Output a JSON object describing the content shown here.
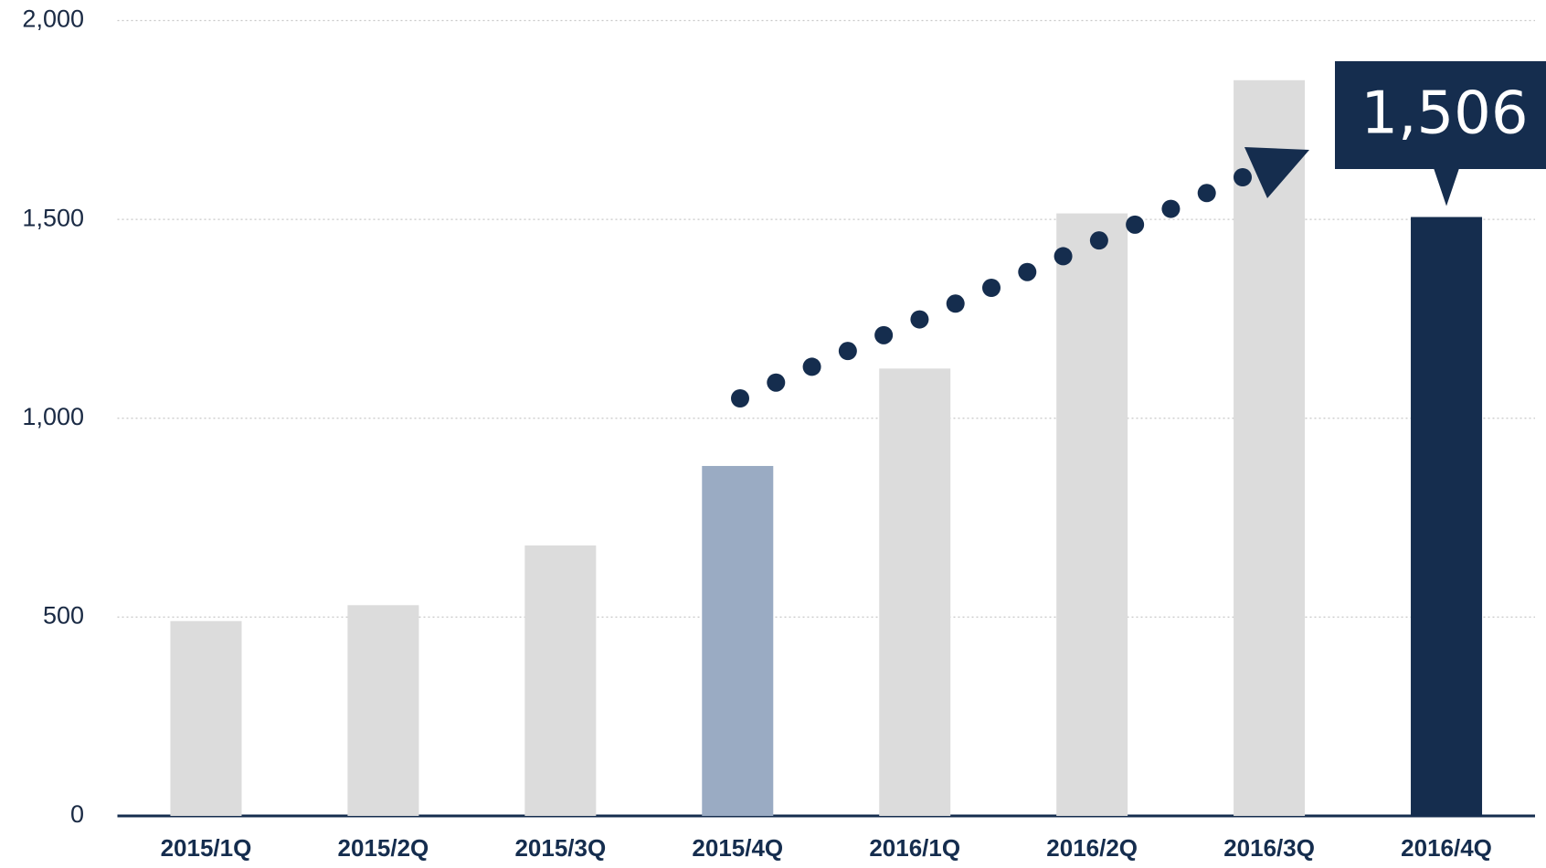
{
  "chart_data": {
    "type": "bar",
    "categories": [
      "2015/1Q",
      "2015/2Q",
      "2015/3Q",
      "2015/4Q",
      "2016/1Q",
      "2016/2Q",
      "2016/3Q",
      "2016/4Q"
    ],
    "values": [
      490,
      530,
      680,
      880,
      1125,
      1515,
      1850,
      1506
    ],
    "value_labels": [
      null,
      null,
      null,
      null,
      null,
      null,
      null,
      "1,506"
    ],
    "colors": [
      "#dcdcdc",
      "#dcdcdc",
      "#dcdcdc",
      "#9aabc3",
      "#dcdcdc",
      "#dcdcdc",
      "#dcdcdc",
      "#152d4e"
    ],
    "ylim": [
      0,
      2000
    ],
    "yticks": [
      0,
      {
        "value": 500,
        "label": "500"
      },
      {
        "value": 1000,
        "label": "1,000"
      },
      {
        "value": 1500,
        "label": "1,500"
      },
      {
        "value": 2000,
        "label": "2,000"
      }
    ],
    "grid": true
  }
}
